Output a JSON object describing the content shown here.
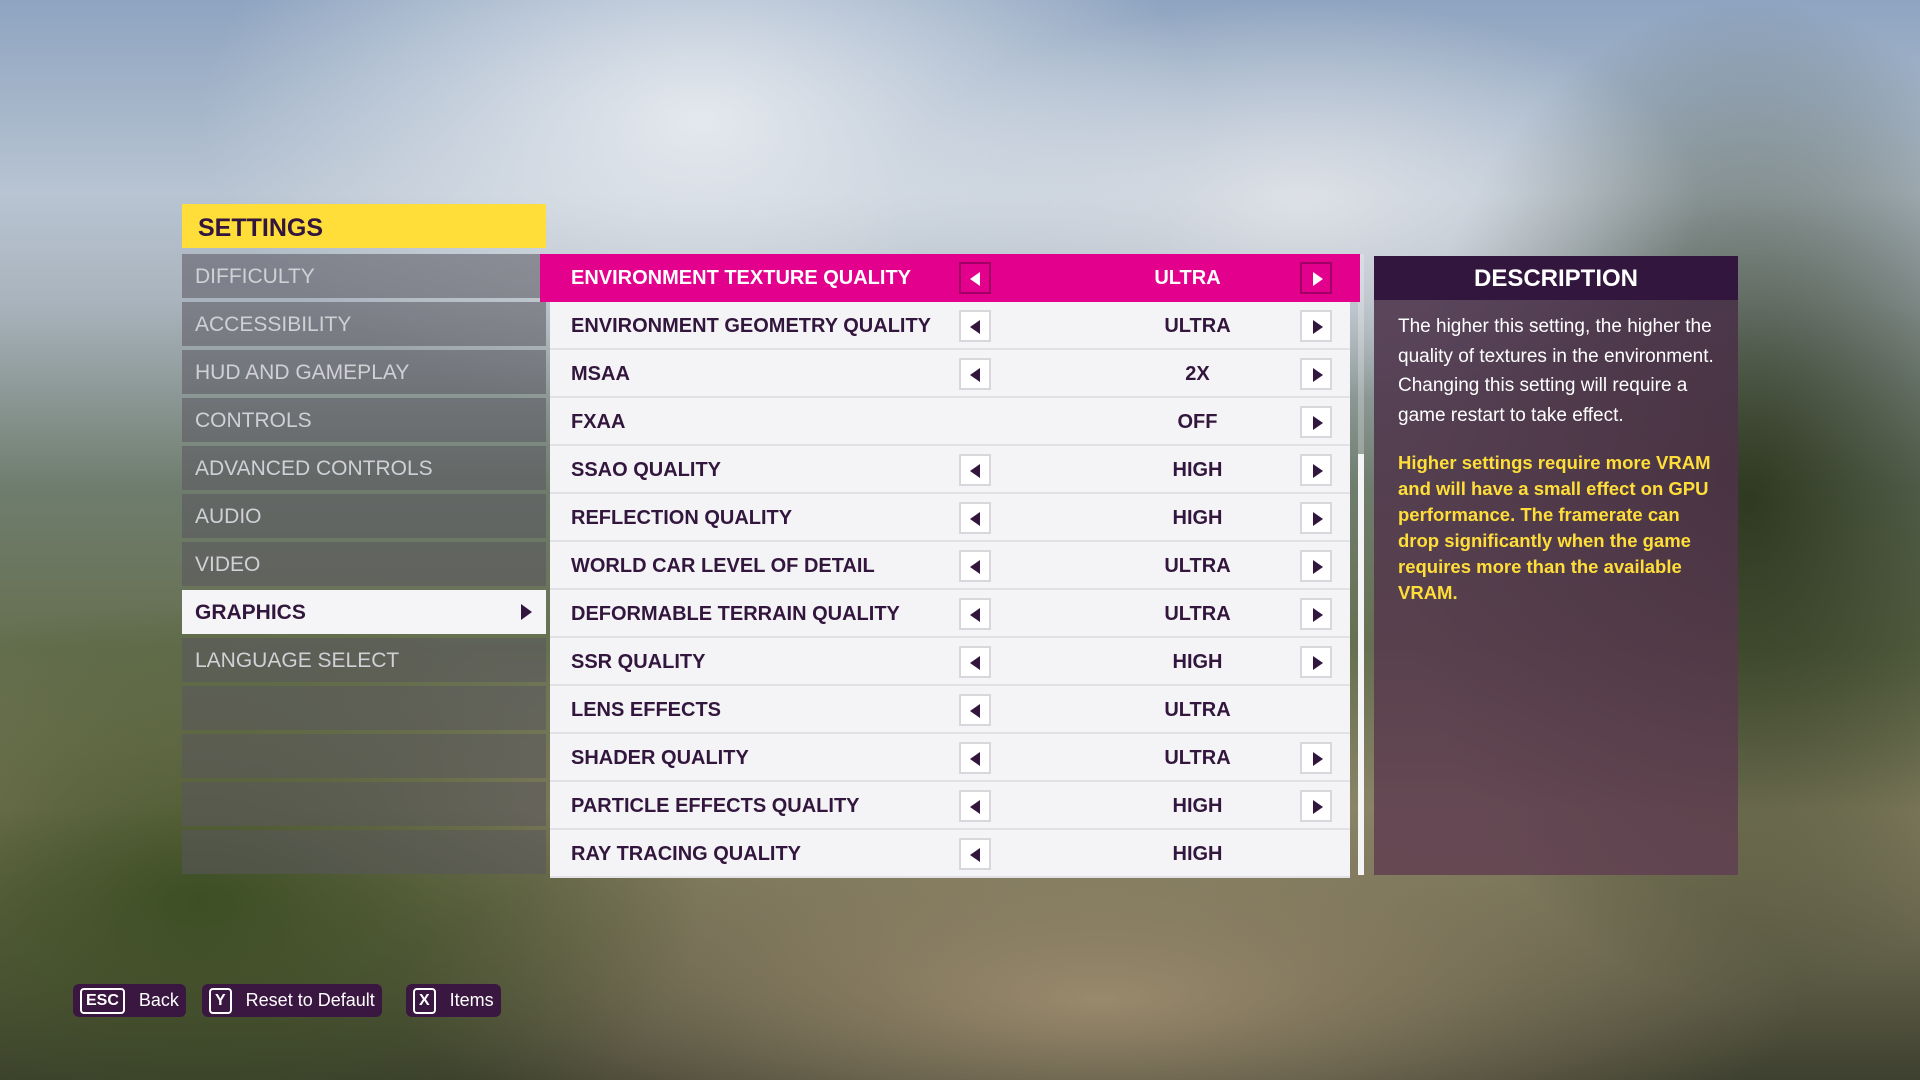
{
  "settings_title": "SETTINGS",
  "nav": [
    {
      "label": "DIFFICULTY"
    },
    {
      "label": "ACCESSIBILITY"
    },
    {
      "label": "HUD AND GAMEPLAY"
    },
    {
      "label": "CONTROLS"
    },
    {
      "label": "ADVANCED CONTROLS"
    },
    {
      "label": "AUDIO"
    },
    {
      "label": "VIDEO"
    },
    {
      "label": "GRAPHICS",
      "selected": true
    },
    {
      "label": "LANGUAGE SELECT"
    }
  ],
  "options": [
    {
      "label": "ENVIRONMENT TEXTURE QUALITY",
      "value": "ULTRA",
      "left": true,
      "right": true,
      "selected": true
    },
    {
      "label": "ENVIRONMENT GEOMETRY QUALITY",
      "value": "ULTRA",
      "left": true,
      "right": true
    },
    {
      "label": "MSAA",
      "value": "2X",
      "left": true,
      "right": true
    },
    {
      "label": "FXAA",
      "value": "OFF",
      "left": false,
      "right": true
    },
    {
      "label": "SSAO QUALITY",
      "value": "HIGH",
      "left": true,
      "right": true
    },
    {
      "label": "REFLECTION QUALITY",
      "value": "HIGH",
      "left": true,
      "right": true
    },
    {
      "label": "WORLD CAR LEVEL OF DETAIL",
      "value": "ULTRA",
      "left": true,
      "right": true
    },
    {
      "label": "DEFORMABLE TERRAIN QUALITY",
      "value": "ULTRA",
      "left": true,
      "right": true
    },
    {
      "label": "SSR QUALITY",
      "value": "HIGH",
      "left": true,
      "right": true
    },
    {
      "label": "LENS EFFECTS",
      "value": "ULTRA",
      "left": true,
      "right": false
    },
    {
      "label": "SHADER QUALITY",
      "value": "ULTRA",
      "left": true,
      "right": true
    },
    {
      "label": "PARTICLE EFFECTS QUALITY",
      "value": "HIGH",
      "left": true,
      "right": true
    },
    {
      "label": "RAY TRACING QUALITY",
      "value": "HIGH",
      "left": true,
      "right": false
    }
  ],
  "description": {
    "title": "DESCRIPTION",
    "text": "The higher this setting, the higher the quality of textures in the environment. Changing this setting will require a game restart to take effect.",
    "warning": "Higher settings require more VRAM and will have a small effect on GPU performance. The framerate can drop significantly when the game requires more than the available VRAM."
  },
  "footer": [
    {
      "key": "ESC",
      "label": "Back"
    },
    {
      "key": "Y",
      "label": "Reset to Default"
    },
    {
      "key": "X",
      "label": "Items"
    }
  ],
  "colors": {
    "accent": "#e3008c",
    "header": "#ffde3a",
    "dark": "#33163d"
  }
}
